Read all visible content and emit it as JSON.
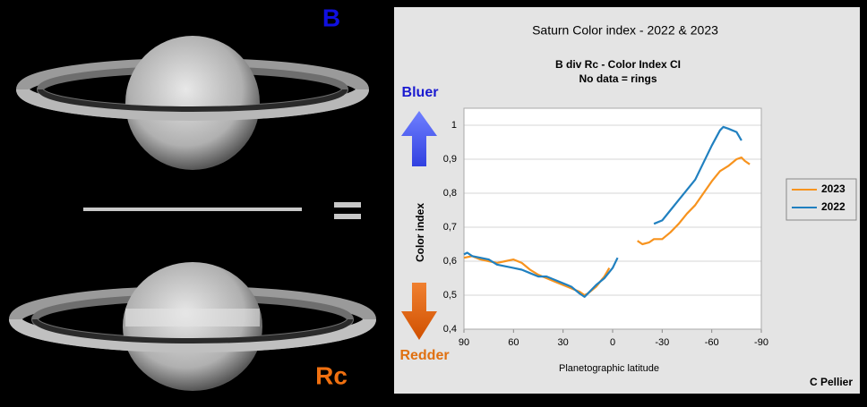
{
  "chart_data": {
    "type": "line",
    "title": "Saturn Color index - 2022 & 2023",
    "subtitle": [
      "B div Rc - Color Index CI",
      "No data = rings"
    ],
    "xlabel": "Planetographic latitude",
    "ylabel": "Color index",
    "annotations": {
      "bluer": "Bluer",
      "redder": "Redder",
      "credit": "C Pellier"
    },
    "xlim": [
      90,
      -90
    ],
    "xticks": [
      90,
      60,
      30,
      0,
      -30,
      -60,
      -90
    ],
    "ylim": [
      0.4,
      1.05
    ],
    "yticks": [
      {
        "value": 0.4,
        "label": "0,4"
      },
      {
        "value": 0.5,
        "label": "0,5"
      },
      {
        "value": 0.6,
        "label": "0,6"
      },
      {
        "value": 0.7,
        "label": "0,7"
      },
      {
        "value": 0.8,
        "label": "0,8"
      },
      {
        "value": 0.9,
        "label": "0,9"
      },
      1
    ],
    "grid": true,
    "legend": "right",
    "series": [
      {
        "name": "2023",
        "color": "#f7931e",
        "x": [
          90,
          85,
          80,
          75,
          70,
          65,
          60,
          55,
          50,
          45,
          40,
          35,
          30,
          25,
          20,
          17,
          15,
          10,
          5,
          2,
          -8,
          -15,
          -18,
          -22,
          -25,
          -30,
          -35,
          -40,
          -45,
          -50,
          -55,
          -60,
          -65,
          -70,
          -75,
          -78,
          -80,
          -83
        ],
        "values": [
          0.61,
          0.615,
          0.605,
          0.6,
          0.595,
          0.6,
          0.605,
          0.595,
          0.575,
          0.56,
          0.55,
          0.54,
          0.53,
          0.52,
          0.51,
          0.5,
          0.505,
          0.525,
          0.555,
          0.58,
          null,
          0.66,
          0.65,
          0.655,
          0.665,
          0.665,
          0.685,
          0.71,
          0.74,
          0.765,
          0.8,
          0.835,
          0.865,
          0.88,
          0.9,
          0.905,
          0.895,
          0.885
        ]
      },
      {
        "name": "2022",
        "color": "#2080c0",
        "x": [
          90,
          88,
          85,
          80,
          75,
          70,
          65,
          60,
          55,
          50,
          45,
          40,
          35,
          30,
          25,
          20,
          17,
          15,
          10,
          5,
          0,
          -3,
          -14,
          -25,
          -30,
          -35,
          -40,
          -45,
          -50,
          -55,
          -60,
          -65,
          -67,
          -70,
          -75,
          -78
        ],
        "values": [
          0.62,
          0.625,
          0.615,
          0.61,
          0.605,
          0.59,
          0.585,
          0.58,
          0.575,
          0.565,
          0.555,
          0.555,
          0.545,
          0.535,
          0.525,
          0.505,
          0.495,
          0.505,
          0.53,
          0.55,
          0.58,
          0.61,
          null,
          0.71,
          0.72,
          0.75,
          0.78,
          0.81,
          0.84,
          0.89,
          0.94,
          0.985,
          0.995,
          0.99,
          0.98,
          0.955
        ]
      }
    ]
  },
  "panel_labels": {
    "blue_filter": "B",
    "red_filter": "Rc"
  }
}
